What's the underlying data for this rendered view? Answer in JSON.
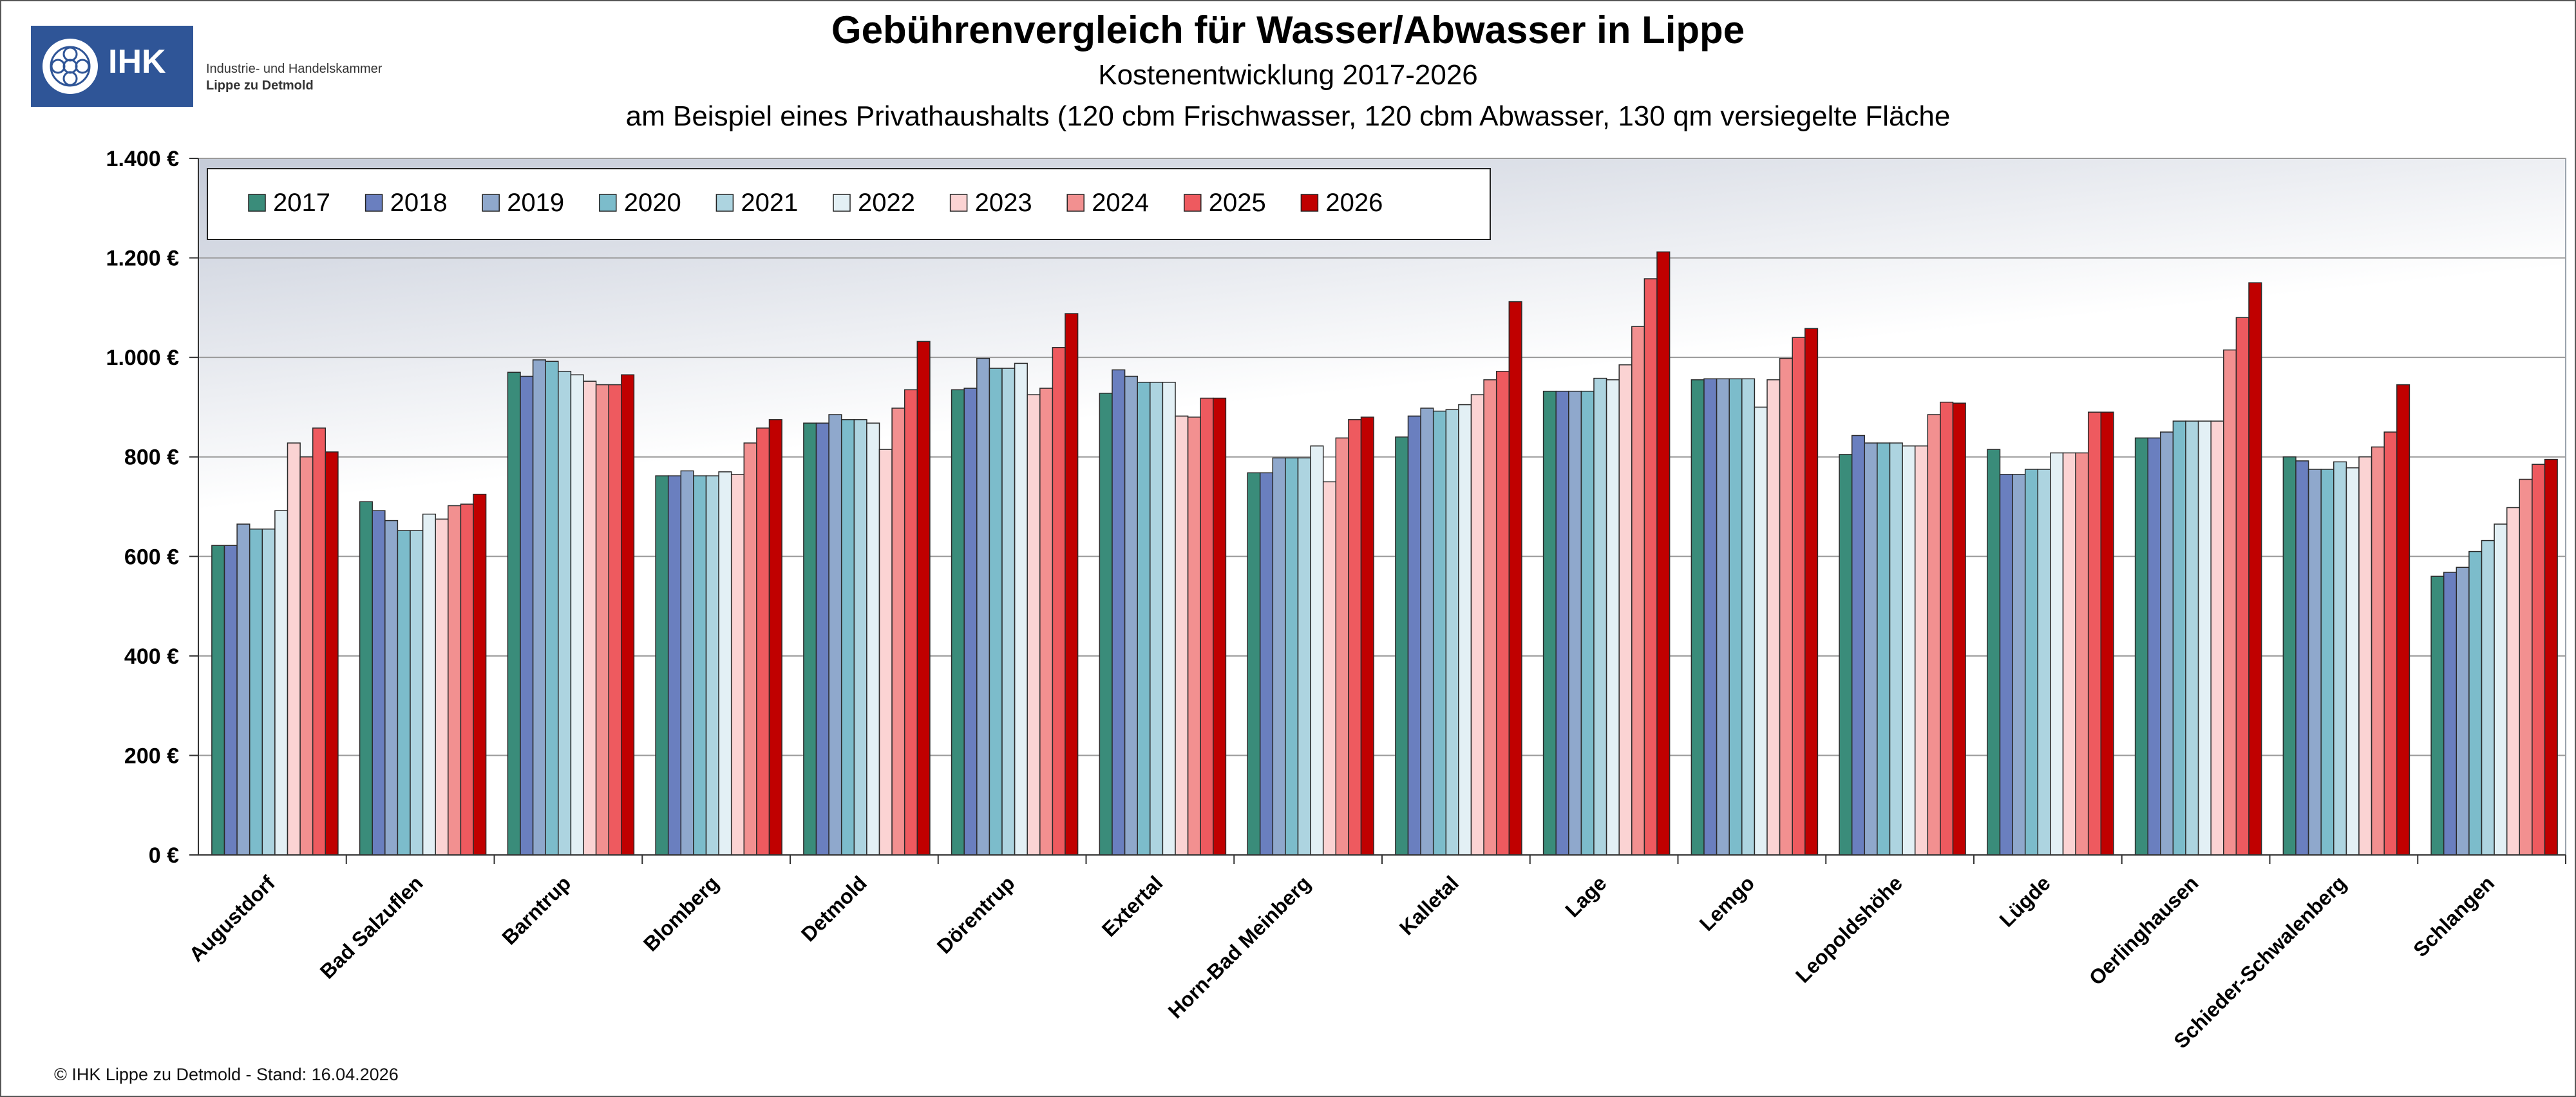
{
  "logo": {
    "abbr": "IHK",
    "line1": "Industrie- und Handelskammer",
    "line2": "Lippe zu Detmold",
    "color": "#2f5597"
  },
  "footer": "© IHK Lippe zu Detmold - Stand: 16.04.2026",
  "chart_data": {
    "type": "bar",
    "title": "Gebührenvergleich für Wasser/Abwasser in Lippe",
    "subtitle": "Kostenentwicklung 2017-2026",
    "subtitle2": "am Beispiel eines Privathaushalts (120 cbm Frischwasser, 120 cbm Abwasser, 130 qm versiegelte Fläche",
    "xlabel": "",
    "ylabel": "",
    "ylim": [
      0,
      1400
    ],
    "yticks": [
      0,
      200,
      400,
      600,
      800,
      1000,
      1200,
      1400
    ],
    "ytick_labels": [
      "0 €",
      "200 €",
      "400 €",
      "600 €",
      "800 €",
      "1.000 €",
      "1.200 €",
      "1.400 €"
    ],
    "grid": true,
    "legend_position": "top-left",
    "categories": [
      "Augustdorf",
      "Bad Salzuflen",
      "Barntrup",
      "Blomberg",
      "Detmold",
      "Dörentrup",
      "Extertal",
      "Horn-Bad Meinberg",
      "Kalletal",
      "Lage",
      "Lemgo",
      "Leopoldshöhe",
      "Lügde",
      "Oerlinghausen",
      "Schieder-Schwalenberg",
      "Schlangen"
    ],
    "series": [
      {
        "name": "2017",
        "color": "#3a8c7a",
        "values": [
          622,
          710,
          970,
          762,
          868,
          935,
          928,
          768,
          840,
          932,
          955,
          805,
          815,
          838,
          800,
          560
        ]
      },
      {
        "name": "2018",
        "color": "#6a7fbf",
        "values": [
          622,
          692,
          962,
          762,
          868,
          938,
          975,
          768,
          882,
          932,
          957,
          843,
          765,
          838,
          792,
          568
        ]
      },
      {
        "name": "2019",
        "color": "#8fa8cc",
        "values": [
          665,
          672,
          995,
          772,
          885,
          998,
          962,
          798,
          898,
          932,
          957,
          828,
          765,
          850,
          775,
          578
        ]
      },
      {
        "name": "2020",
        "color": "#7cbccb",
        "values": [
          655,
          652,
          992,
          762,
          875,
          978,
          950,
          798,
          892,
          932,
          957,
          828,
          775,
          872,
          775,
          610
        ]
      },
      {
        "name": "2021",
        "color": "#add4e0",
        "values": [
          655,
          652,
          972,
          762,
          875,
          978,
          950,
          798,
          895,
          958,
          957,
          828,
          775,
          872,
          790,
          632
        ]
      },
      {
        "name": "2022",
        "color": "#e3f0f5",
        "values": [
          692,
          685,
          965,
          770,
          868,
          988,
          950,
          822,
          905,
          955,
          900,
          822,
          808,
          872,
          778,
          665
        ]
      },
      {
        "name": "2023",
        "color": "#fbd3d3",
        "values": [
          828,
          675,
          952,
          765,
          815,
          925,
          882,
          750,
          925,
          985,
          955,
          822,
          808,
          872,
          800,
          698
        ]
      },
      {
        "name": "2024",
        "color": "#f29090",
        "values": [
          800,
          702,
          945,
          828,
          898,
          938,
          880,
          838,
          955,
          1062,
          998,
          885,
          808,
          1015,
          820,
          755
        ]
      },
      {
        "name": "2025",
        "color": "#ee5a5f",
        "values": [
          858,
          705,
          945,
          858,
          935,
          1020,
          918,
          875,
          972,
          1158,
          1040,
          910,
          890,
          1080,
          850,
          785
        ]
      },
      {
        "name": "2026",
        "color": "#c00000",
        "values": [
          810,
          725,
          965,
          875,
          1032,
          1088,
          918,
          880,
          1112,
          1212,
          1058,
          908,
          890,
          1150,
          945,
          795
        ]
      }
    ]
  }
}
